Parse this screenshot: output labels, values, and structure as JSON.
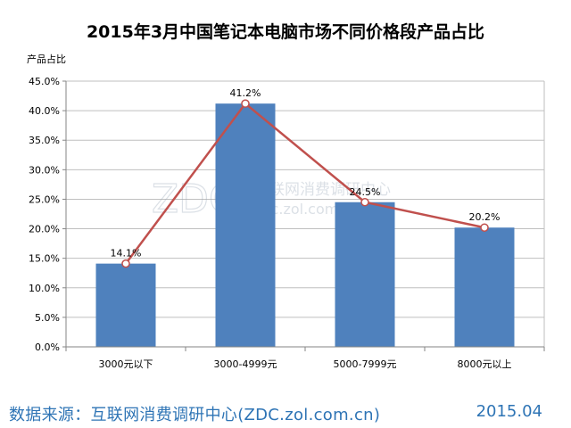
{
  "chart_data": {
    "type": "bar",
    "title": "2015年3月中国笔记本电脑市场不同价格段产品占比",
    "ylabel": "产品占比",
    "xlabel": "",
    "categories": [
      "3000元以下",
      "3000-4999元",
      "5000-7999元",
      "8000元以上"
    ],
    "series": [
      {
        "type": "bar",
        "values": [
          14.1,
          41.2,
          24.5,
          20.2
        ],
        "color": "#4f81bd"
      },
      {
        "type": "line",
        "values": [
          14.1,
          41.2,
          24.5,
          20.2
        ],
        "color": "#c0504d"
      }
    ],
    "data_labels": [
      "14.1%",
      "41.2%",
      "24.5%",
      "20.2%"
    ],
    "ylim": [
      0,
      45
    ],
    "ytick_step": 5,
    "ytick_labels": [
      "0.0%",
      "5.0%",
      "10.0%",
      "15.0%",
      "20.0%",
      "25.0%",
      "30.0%",
      "35.0%",
      "40.0%",
      "45.0%"
    ],
    "grid": true,
    "legend": "none"
  },
  "watermark": {
    "logo": "ZDC",
    "text": "互联网消费调研中心",
    "url": "zdc.zol.com.cn"
  },
  "footer": {
    "source": "数据来源：互联网消费调研中心(ZDC.zol.com.cn)",
    "date": "2015.04"
  }
}
